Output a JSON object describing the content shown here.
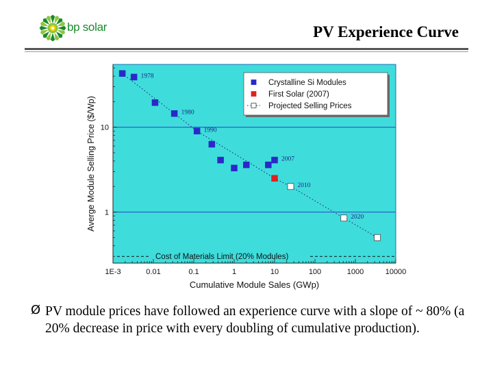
{
  "brand": {
    "logo_text": "bp solar",
    "colors": {
      "green": "#1a8a2a",
      "yellow": "#f5d500",
      "lightgreen": "#8cc63f"
    }
  },
  "slide": {
    "title": "PV Experience Curve",
    "bullet_icon": "arrow-bullet-icon",
    "bullet_glyph": "Ø",
    "bullet_text": "PV module prices have followed an experience curve with a slope of ~ 80% (a 20% decrease in price with every doubling of cumulative production)."
  },
  "chart_data": {
    "type": "scatter",
    "xlabel": "Cumulative Module Sales (GWp)",
    "ylabel": "Averge Module Selling Price ($/Wp)",
    "xscale": "log",
    "yscale": "log",
    "xlim": [
      0.001,
      10000
    ],
    "ylim": [
      0.25,
      55
    ],
    "x_ticks": [
      0.001,
      0.01,
      0.1,
      1,
      10,
      100,
      1000,
      10000
    ],
    "x_tick_labels": [
      "1E-3",
      "0.01",
      "0.1",
      "1",
      "10",
      "100",
      "1000",
      "10000"
    ],
    "y_ticks": [
      1,
      10
    ],
    "y_tick_labels": [
      "1",
      "10"
    ],
    "horizontal_gridlines_at": [
      1,
      10
    ],
    "background": "#3fdcdc",
    "legend_position": "top-right",
    "series": [
      {
        "name": "Crystalline Si Modules",
        "color": "#2929c8",
        "marker": "filled-square",
        "x": [
          0.0017,
          0.0033,
          0.011,
          0.033,
          0.12,
          0.28,
          0.46,
          1.0,
          2.0,
          7.0,
          10.0
        ],
        "y": [
          43,
          39,
          19.5,
          14.5,
          9.0,
          6.3,
          4.1,
          3.3,
          3.6,
          3.6,
          4.1
        ]
      },
      {
        "name": "First Solar (2007)",
        "color": "#e02020",
        "marker": "filled-square",
        "x": [
          10.0
        ],
        "y": [
          2.5
        ]
      },
      {
        "name": "Projected Selling Prices",
        "color": "#ffffff",
        "marker": "open-square",
        "x": [
          25,
          520,
          3500
        ],
        "y": [
          2.0,
          0.85,
          0.5
        ]
      }
    ],
    "trend_line": {
      "style": "dotted",
      "points": [
        [
          0.0017,
          43
        ],
        [
          0.033,
          14.5
        ],
        [
          0.12,
          9.0
        ],
        [
          2.0,
          4.0
        ],
        [
          10.0,
          2.5
        ],
        [
          25,
          2.0
        ],
        [
          520,
          0.85
        ],
        [
          3500,
          0.5
        ]
      ]
    },
    "cost_limit": {
      "label": "Cost of Materials Limit (20% Modules)",
      "y": 0.3,
      "style": "dashed"
    },
    "annotations": [
      {
        "text": "1978",
        "x": 0.0033,
        "y": 39
      },
      {
        "text": "1980",
        "x": 0.033,
        "y": 14.5
      },
      {
        "text": "1990",
        "x": 0.12,
        "y": 9.0
      },
      {
        "text": "2007",
        "x": 10.0,
        "y": 4.1
      },
      {
        "text": "2010",
        "x": 25,
        "y": 2.0
      },
      {
        "text": "2020",
        "x": 520,
        "y": 0.85
      }
    ]
  }
}
